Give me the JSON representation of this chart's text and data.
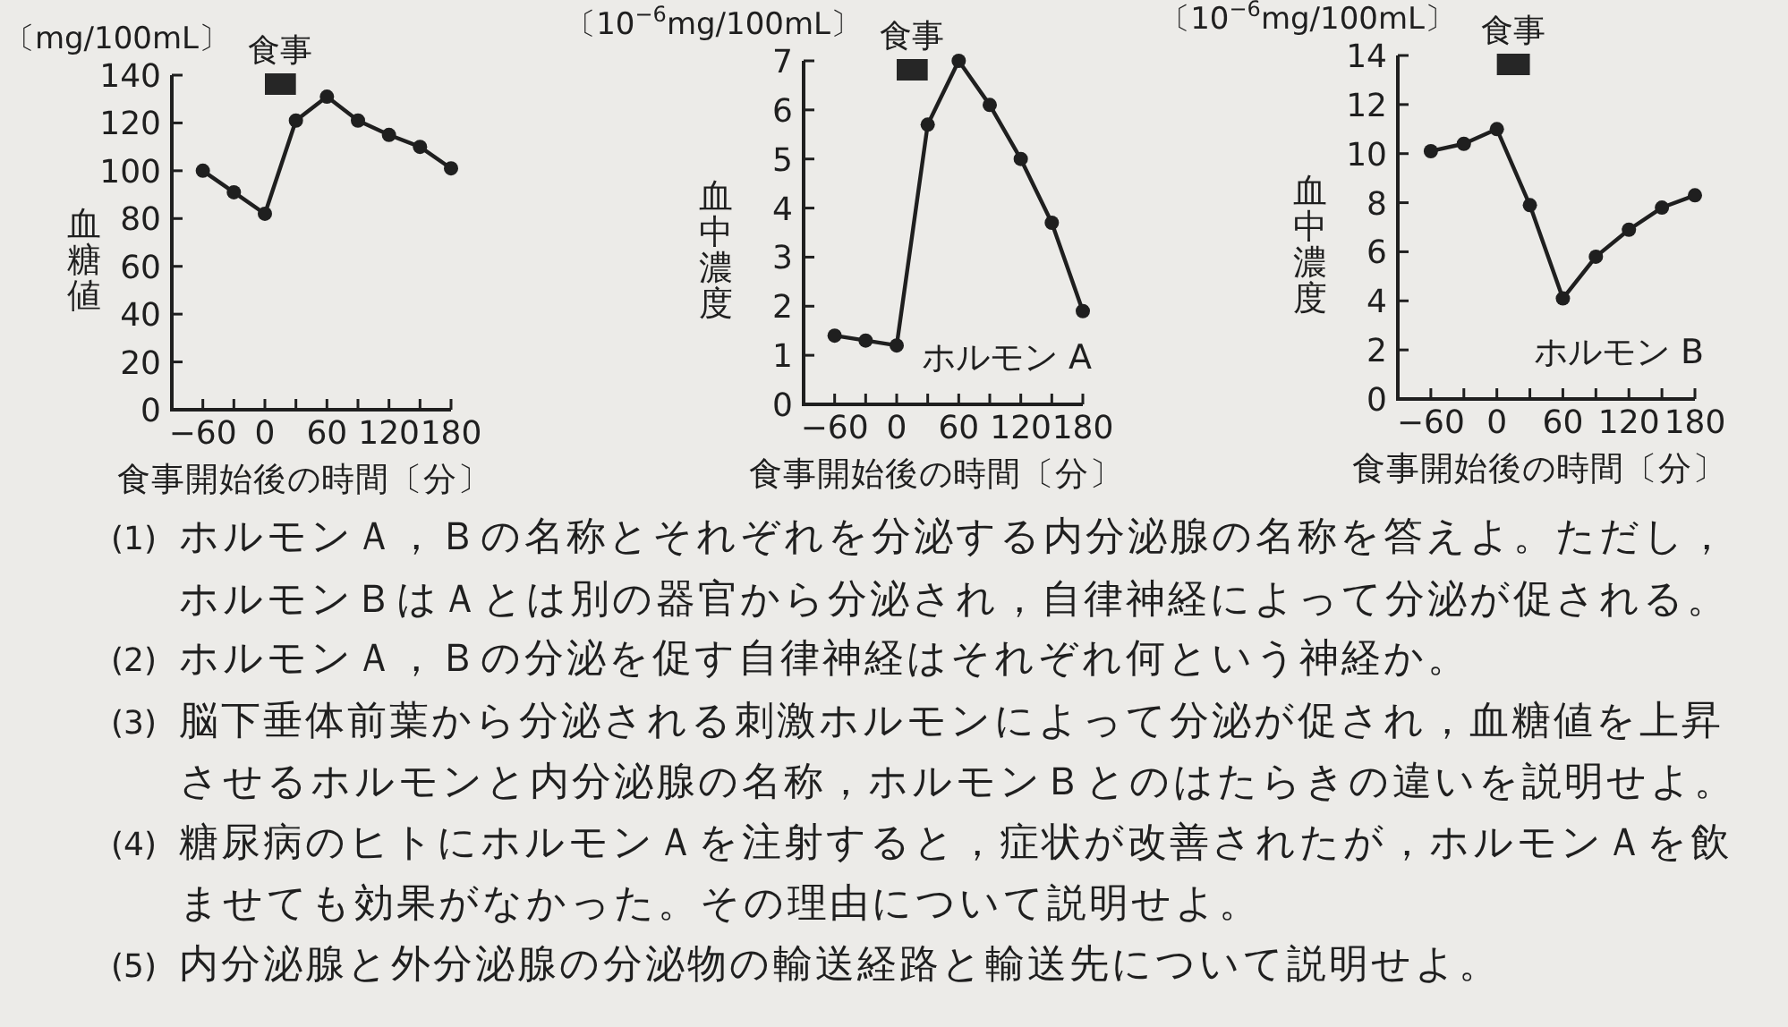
{
  "chart_data": [
    {
      "type": "line",
      "ylabel": "血糖値",
      "xlabel": "食事開始後の時間〔分〕",
      "annotations": [
        "〔mg/100mL〕"
      ],
      "x": [
        -60,
        -30,
        0,
        30,
        60,
        90,
        120,
        150,
        180
      ],
      "series": [
        {
          "color": "#1f1f1f",
          "values": [
            100,
            91,
            82,
            121,
            131,
            121,
            115,
            110,
            101
          ]
        }
      ],
      "xlim": [
        -90,
        180
      ],
      "xticks": [
        {
          "value": -60,
          "label": "−60"
        },
        {
          "value": -30,
          "label": null
        },
        0,
        {
          "value": 30,
          "label": null
        },
        60,
        {
          "value": 90,
          "label": null
        },
        120,
        {
          "value": 150,
          "label": null
        },
        180
      ],
      "ylim": [
        0,
        140
      ],
      "yticks": [
        0,
        20,
        40,
        60,
        80,
        100,
        120,
        140
      ],
      "bands": [
        {
          "axis": "x",
          "from": 0,
          "to": 30,
          "label": "食事",
          "color": "#262626"
        }
      ],
      "marker": "circle",
      "line_style": "solid"
    },
    {
      "type": "line",
      "ylabel": "血中濃度",
      "xlabel": "食事開始後の時間〔分〕",
      "annotations": [
        "〔10$^{−6}$mg/100mL〕"
      ],
      "x": [
        -60,
        -30,
        0,
        30,
        60,
        90,
        120,
        150,
        180
      ],
      "series": [
        {
          "name": "ホルモン A",
          "color": "#1f1f1f",
          "values": [
            1.4,
            1.3,
            1.2,
            5.7,
            7.0,
            6.1,
            5.0,
            3.7,
            1.9
          ]
        }
      ],
      "xlim": [
        -90,
        180
      ],
      "xticks": [
        {
          "value": -60,
          "label": "−60"
        },
        {
          "value": -30,
          "label": null
        },
        0,
        {
          "value": 30,
          "label": null
        },
        60,
        {
          "value": 90,
          "label": null
        },
        120,
        {
          "value": 150,
          "label": null
        },
        180
      ],
      "ylim": [
        0,
        7
      ],
      "yticks": [
        0,
        1,
        2,
        3,
        4,
        5,
        6,
        7
      ],
      "bands": [
        {
          "axis": "x",
          "from": 0,
          "to": 30,
          "label": "食事",
          "color": "#262626"
        }
      ],
      "marker": "circle",
      "line_style": "solid"
    },
    {
      "type": "line",
      "ylabel": "血中濃度",
      "xlabel": "食事開始後の時間〔分〕",
      "annotations": [
        "〔10$^{−6}$mg/100mL〕"
      ],
      "x": [
        -60,
        -30,
        0,
        30,
        60,
        90,
        120,
        150,
        180
      ],
      "series": [
        {
          "name": "ホルモン B",
          "color": "#1f1f1f",
          "values": [
            10.1,
            10.4,
            11.0,
            7.9,
            4.1,
            5.8,
            6.9,
            7.8,
            8.3
          ]
        }
      ],
      "xlim": [
        -90,
        180
      ],
      "xticks": [
        {
          "value": -60,
          "label": "−60"
        },
        {
          "value": -30,
          "label": null
        },
        0,
        {
          "value": 30,
          "label": null
        },
        60,
        {
          "value": 90,
          "label": null
        },
        120,
        {
          "value": 150,
          "label": null
        },
        180
      ],
      "ylim": [
        0,
        14
      ],
      "yticks": [
        0,
        2,
        4,
        6,
        8,
        10,
        12,
        14
      ],
      "bands": [
        {
          "axis": "x",
          "from": 0,
          "to": 30,
          "label": "食事",
          "color": "#262626"
        }
      ],
      "marker": "circle",
      "line_style": "solid"
    },
    {
      "type": "other",
      "annotations": [
        "(1) ホルモンＡ，Ｂの名称とそれぞれを分泌する内分泌腺の名称を答えよ。ただし，ホルモンＢはＡとは別の器官から分泌され，自律神経によって分泌が促される。",
        "(2) ホルモンＡ，Ｂの分泌を促す自律神経はそれぞれ何という神経か。",
        "(3) 脳下垂体前葉から分泌される刺激ホルモンによって分泌が促され，血糖値を上昇させるホルモンと内分泌腺の名称，ホルモンＢとのはたらきの違いを説明せよ。",
        "(4) 糖尿病のヒトにホルモンＡを注射すると，症状が改善されたが，ホルモンＡを飲ませても効果がなかった。その理由について説明せよ。",
        "(5) 内分泌腺と外分泌腺の分泌物の輸送経路と輸送先について説明せよ。"
      ]
    }
  ]
}
